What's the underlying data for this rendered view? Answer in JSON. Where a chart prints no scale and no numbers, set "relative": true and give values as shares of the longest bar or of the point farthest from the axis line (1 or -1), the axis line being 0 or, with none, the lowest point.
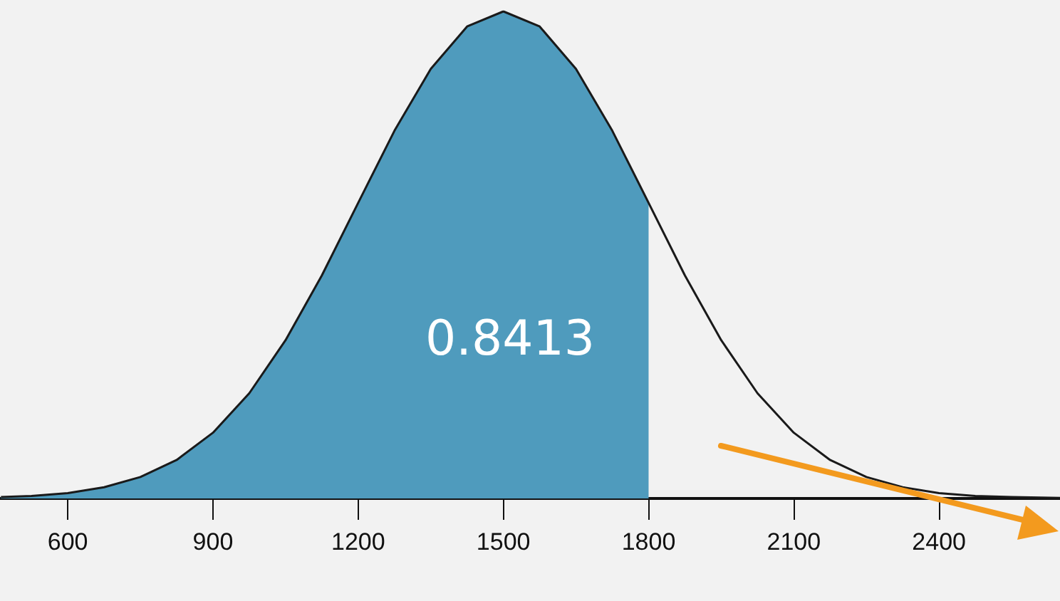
{
  "chart_data": {
    "type": "area",
    "relative": true,
    "xlim": [
      460,
      2650
    ],
    "xticks": [
      600,
      900,
      1200,
      1500,
      1800,
      2100,
      2400
    ],
    "grid": false,
    "series": [
      {
        "color": "#4f9bbd",
        "x": [
          462,
          525,
          600,
          675,
          750,
          825,
          900,
          975,
          1050,
          1125,
          1200,
          1275,
          1350,
          1425,
          1500,
          1575,
          1650,
          1725,
          1800
        ],
        "values": [
          0.003,
          0.005,
          0.011,
          0.023,
          0.044,
          0.079,
          0.135,
          0.216,
          0.325,
          0.458,
          0.607,
          0.755,
          0.882,
          0.969,
          1,
          0.969,
          0.882,
          0.755,
          0.607
        ]
      },
      {
        "type": "line",
        "color": "#1a1a1a",
        "x": [
          462,
          525,
          600,
          675,
          750,
          825,
          900,
          975,
          1050,
          1125,
          1200,
          1275,
          1350,
          1425,
          1500,
          1575,
          1650,
          1725,
          1800,
          1875,
          1950,
          2025,
          2100,
          2175,
          2250,
          2325,
          2400,
          2475,
          2550,
          2650
        ],
        "values": [
          0.003,
          0.005,
          0.011,
          0.023,
          0.044,
          0.079,
          0.135,
          0.216,
          0.325,
          0.458,
          0.607,
          0.755,
          0.882,
          0.969,
          1,
          0.969,
          0.882,
          0.755,
          0.607,
          0.458,
          0.325,
          0.216,
          0.135,
          0.079,
          0.044,
          0.023,
          0.011,
          0.005,
          0.003,
          0.001
        ]
      }
    ],
    "annotations": [
      "0.8413"
    ]
  }
}
